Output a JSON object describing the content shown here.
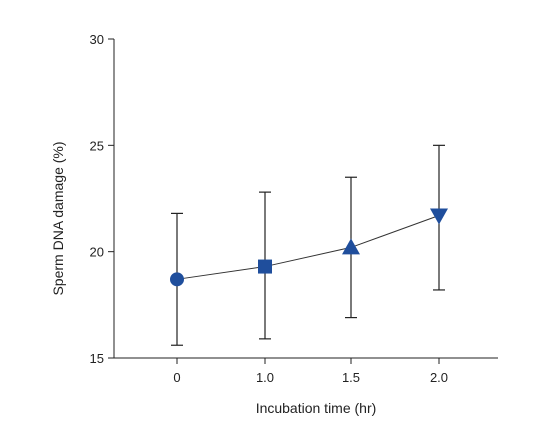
{
  "chart_data": {
    "type": "line",
    "categories": [
      "0",
      "1.0",
      "1.5",
      "2.0"
    ],
    "x_values": [
      0,
      1.0,
      1.5,
      2.0
    ],
    "values": [
      18.7,
      19.3,
      20.2,
      21.7
    ],
    "error_upper": [
      21.8,
      22.8,
      23.5,
      25.0
    ],
    "error_lower": [
      15.6,
      15.9,
      16.9,
      18.2
    ],
    "markers": [
      "circle",
      "square",
      "triangle-up",
      "triangle-down"
    ],
    "marker_color": "#1f4e9c",
    "xlabel": "Incubation time (hr)",
    "ylabel": "Sperm DNA damage (%)",
    "ylim": [
      15,
      30
    ],
    "y_ticks": [
      15,
      20,
      25,
      30
    ],
    "grid": false
  }
}
